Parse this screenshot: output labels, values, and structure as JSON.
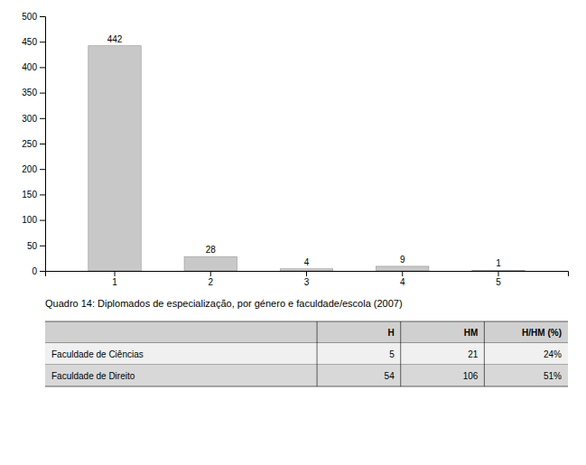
{
  "chart_data": {
    "type": "bar",
    "categories": [
      "1",
      "2",
      "3",
      "4",
      "5"
    ],
    "values": [
      442,
      28,
      4,
      9,
      1
    ],
    "color": "#c8c8c8",
    "ylim": [
      0,
      500
    ],
    "yticks": [
      0,
      50,
      100,
      150,
      200,
      250,
      300,
      350,
      400,
      450,
      500
    ],
    "data_labels": true,
    "grid": false,
    "table": {
      "title": "Quadro 14: Diplomados de especialização, por género e faculdade/escola (2007)",
      "headers": [
        null,
        "H",
        "HM",
        "H/HM (%)"
      ],
      "rows": [
        [
          "Faculdade de Ciências",
          "5",
          "21",
          "24%"
        ],
        [
          "Faculdade de Direito",
          "54",
          "106",
          "51%"
        ]
      ]
    }
  }
}
